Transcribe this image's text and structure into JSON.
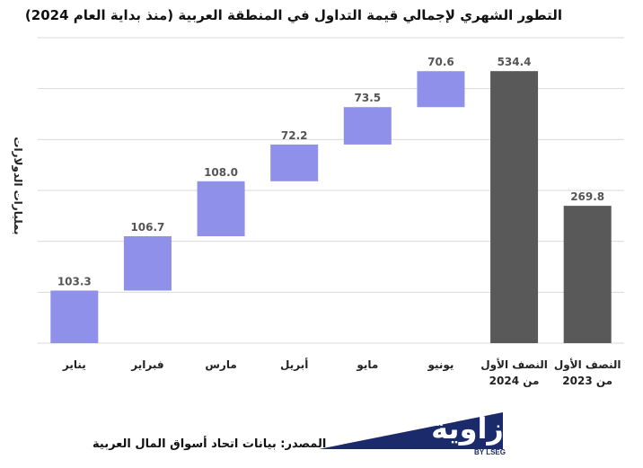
{
  "chart_data": {
    "type": "bar",
    "title": "التطور الشهري لإجمالي قيمة التداول في المنطقة العربية (منذ بداية العام 2024)",
    "ylabel": "بمليارات الدولارات",
    "xlabel": "",
    "grid": true,
    "categories": [
      "يناير",
      "فبراير",
      "مارس",
      "أبريل",
      "مايو",
      "يونيو",
      "النصف الأول من 2024",
      "النصف الأول من 2023"
    ],
    "category_lines": [
      [
        "يناير"
      ],
      [
        "فبراير"
      ],
      [
        "مارس"
      ],
      [
        "أبريل"
      ],
      [
        "مايو"
      ],
      [
        "يونيو"
      ],
      [
        "النصف الأول",
        "من 2024"
      ],
      [
        "النصف الأول",
        "من 2023"
      ]
    ],
    "values": [
      103.3,
      106.7,
      108.0,
      72.2,
      73.5,
      70.6,
      534.4,
      269.8
    ],
    "value_labels": [
      "103.3",
      "106.7",
      "108.0",
      "72.2",
      "73.5",
      "70.6",
      "534.4",
      "269.8"
    ],
    "bar_kinds": [
      "step",
      "step",
      "step",
      "step",
      "step",
      "step",
      "total",
      "total"
    ],
    "ylim": [
      0,
      600
    ],
    "colors": {
      "step": "#8f90ea",
      "total": "#595959",
      "grid": "#d9d9d9",
      "label": "#555555"
    }
  },
  "footer": {
    "source": "المصدر: بيانات اتحاد أسواق المال العربية",
    "brand_name": "زاوية",
    "brand_sub": "BY LSEG",
    "brand_color": "#1b2a6b"
  }
}
